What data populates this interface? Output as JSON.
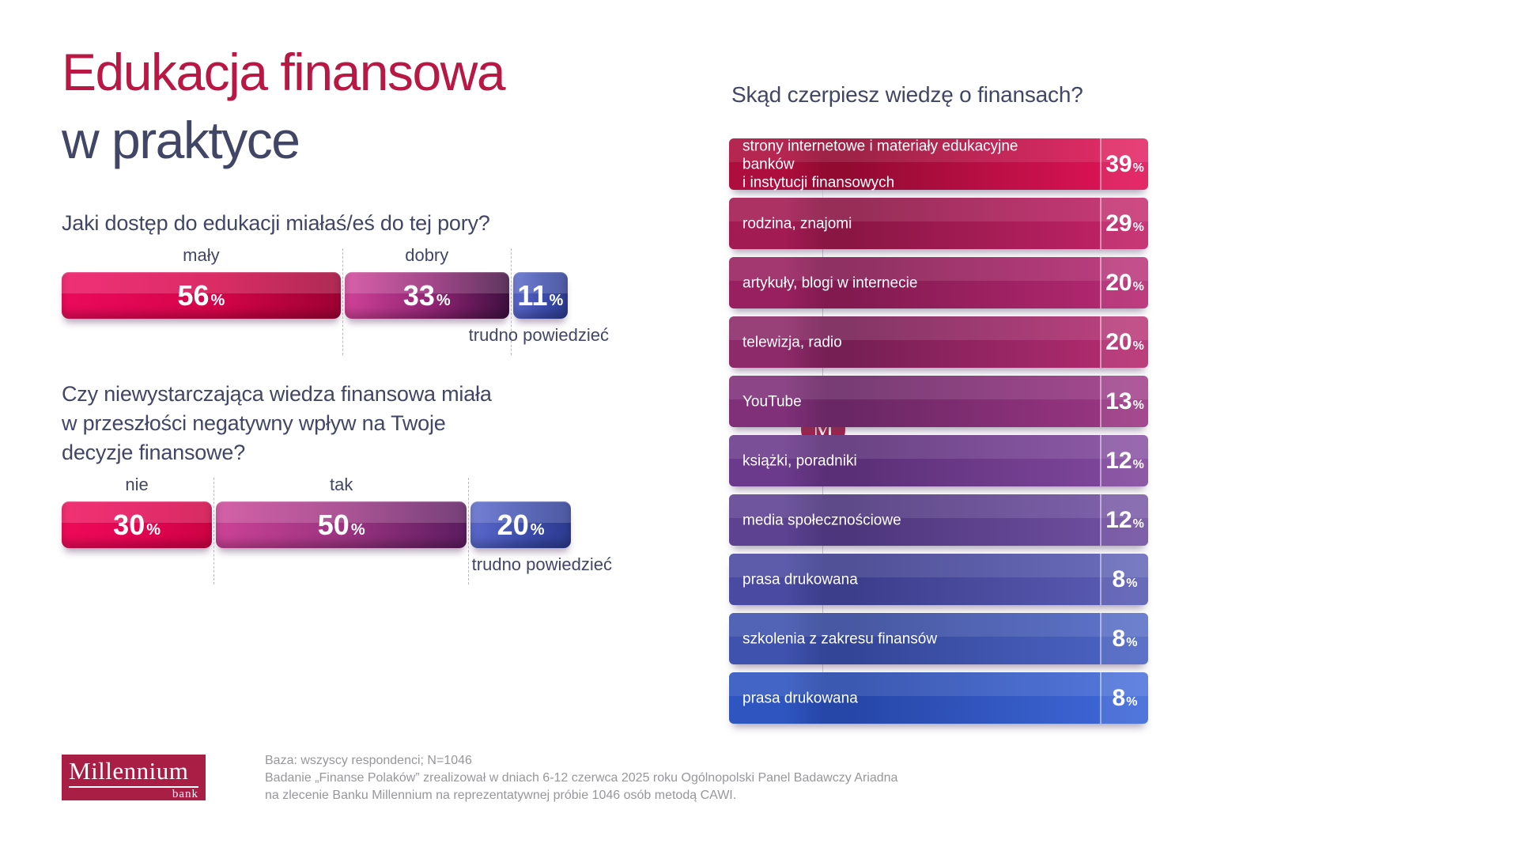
{
  "header": {
    "title_line1": "Edukacja finansowa",
    "title_line2": "w praktyce",
    "title_color_primary": "#b81843",
    "title_color_secondary": "#414667"
  },
  "chart_data": [
    {
      "type": "bar",
      "subtype": "stacked-horizontal",
      "title": "Jaki dostęp do edukacji miałaś/eś do tej pory?",
      "categories": [
        "mały",
        "dobry",
        "trudno powiedzieć"
      ],
      "values": [
        56,
        33,
        11
      ],
      "unit": "%",
      "legend_position": "above-and-below",
      "grid": false,
      "segment_colors": [
        [
          "#ec0a5c",
          "#d40449",
          "#9e0233"
        ],
        [
          "#d04298",
          "#8e2372",
          "#3f1040"
        ],
        [
          "#5a68cc",
          "#3c4cab",
          "#2c3a8e"
        ]
      ]
    },
    {
      "type": "bar",
      "subtype": "stacked-horizontal",
      "title": "Czy niewystarczająca wiedza finansowa miała\nw przeszłości negatywny wpływ na Twoje\ndecyzje finansowe?",
      "categories": [
        "nie",
        "tak",
        "trudno powiedzieć"
      ],
      "values": [
        30,
        50,
        20
      ],
      "unit": "%",
      "legend_position": "above-and-below",
      "grid": false,
      "segment_colors": [
        [
          "#ee0a58",
          "#e00450",
          "#cd0345"
        ],
        [
          "#cc4296",
          "#97327f",
          "#5c1c5f"
        ],
        [
          "#5a68cc",
          "#3c4cab",
          "#2c3a8e"
        ]
      ]
    },
    {
      "type": "bar",
      "subtype": "horizontal",
      "title": "Skąd czerpiesz wiedzę o finansach?",
      "categories": [
        "strony internetowe i materiały edukacyjne banków\ni instytucji finansowych",
        "rodzina, znajomi",
        "artykuły, blogi w internecie",
        "telewizja, radio",
        "YouTube",
        "książki, poradniki",
        "media społecznościowe",
        "prasa drukowana",
        "szkolenia z zakresu finansów",
        "prasa drukowana"
      ],
      "values": [
        39,
        29,
        20,
        20,
        13,
        12,
        12,
        8,
        8,
        8
      ],
      "unit": "%",
      "grid": false,
      "bar_colors": [
        [
          "#ad0e3d",
          "#930a31",
          "#e21459"
        ],
        [
          "#a31b53",
          "#8a1644",
          "#c22368"
        ],
        [
          "#992060",
          "#821a50",
          "#b62973"
        ],
        [
          "#8d2a69",
          "#761f55",
          "#b52c71"
        ],
        [
          "#7f3079",
          "#6a2765",
          "#9c3684"
        ],
        [
          "#6c3a8c",
          "#5a2f77",
          "#82489e"
        ],
        [
          "#5d4292",
          "#4d367c",
          "#7150a2"
        ],
        [
          "#4a4aa2",
          "#3c3d8b",
          "#5a5cb4"
        ],
        [
          "#3f52ae",
          "#334597",
          "#4c64c4"
        ],
        [
          "#2e55c0",
          "#2646a8",
          "#3f68d8"
        ]
      ]
    }
  ],
  "brand": {
    "logo_title": "Millennium",
    "logo_sub": "bank",
    "color": "#a81e45",
    "badge_letter": "M"
  },
  "footnote": "Baza: wszyscy respondenci; N=1046\nBadanie „Finanse Polaków” zrealizował w dniach 6-12 czerwca 2025 roku Ogólnopolski Panel Badawczy Ariadna\nna zlecenie Banku Millennium na reprezentatywnej próbie 1046 osób metodą CAWI."
}
